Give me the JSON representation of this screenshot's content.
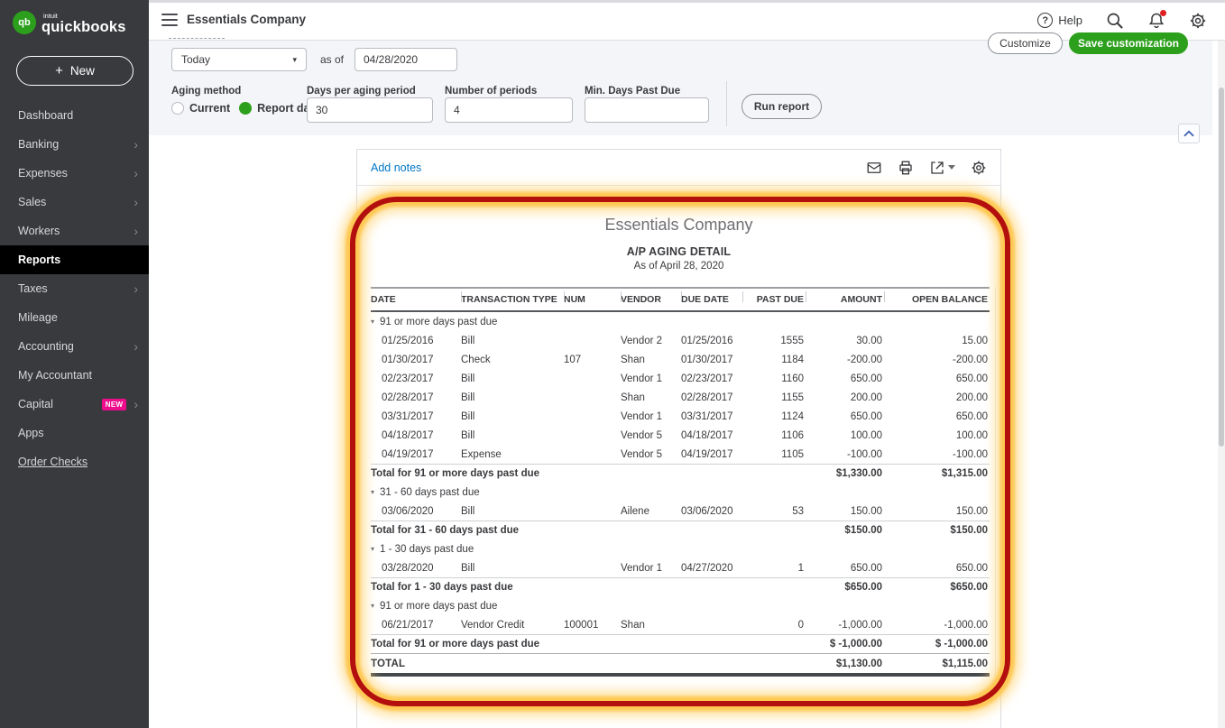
{
  "colors": {
    "green": "#2ca01c",
    "pink": "#ec0c8c",
    "blue": "#0077c5",
    "red": "#b30f0c"
  },
  "brand": {
    "badge": "qb",
    "intuit": "intuit",
    "name": "quickbooks"
  },
  "topbar": {
    "company": "Essentials Company",
    "help": "Help"
  },
  "actions": {
    "customize": "Customize",
    "save_customization": "Save customization",
    "run_report": "Run report"
  },
  "sidebar": {
    "new_plus": "+",
    "new_label": "New",
    "items": [
      {
        "label": "Dashboard",
        "chevron": false,
        "selected": false
      },
      {
        "label": "Banking",
        "chevron": true,
        "selected": false
      },
      {
        "label": "Expenses",
        "chevron": true,
        "selected": false
      },
      {
        "label": "Sales",
        "chevron": true,
        "selected": false
      },
      {
        "label": "Workers",
        "chevron": true,
        "selected": false
      },
      {
        "label": "Reports",
        "chevron": false,
        "selected": true
      },
      {
        "label": "Taxes",
        "chevron": true,
        "selected": false
      },
      {
        "label": "Mileage",
        "chevron": false,
        "selected": false
      },
      {
        "label": "Accounting",
        "chevron": true,
        "selected": false
      },
      {
        "label": "My Accountant",
        "chevron": false,
        "selected": false
      },
      {
        "label": "Capital",
        "chevron": true,
        "selected": false,
        "badge": "NEW"
      },
      {
        "label": "Apps",
        "chevron": false,
        "selected": false
      },
      {
        "label": "Order Checks",
        "chevron": false,
        "selected": false,
        "underline": true
      }
    ]
  },
  "filters": {
    "period_value": "Today",
    "as_of_label": "as of",
    "as_of_value": "04/28/2020",
    "aging_method_label": "Aging method",
    "aging_options": [
      {
        "label": "Current",
        "selected": false
      },
      {
        "label": "Report date",
        "selected": true
      }
    ],
    "days_per_period_label": "Days per aging period",
    "days_per_period_value": "30",
    "num_periods_label": "Number of periods",
    "num_periods_value": "4",
    "min_days_label": "Min. Days Past Due",
    "min_days_value": ""
  },
  "report_toolbar": {
    "add_notes": "Add notes"
  },
  "report": {
    "company": "Essentials Company",
    "title": "A/P AGING DETAIL",
    "subtitle": "As of April 28, 2020",
    "columns": [
      {
        "label": "DATE",
        "align": "left"
      },
      {
        "label": "TRANSACTION TYPE",
        "align": "left"
      },
      {
        "label": "NUM",
        "align": "left"
      },
      {
        "label": "VENDOR",
        "align": "left"
      },
      {
        "label": "DUE DATE",
        "align": "left"
      },
      {
        "label": "PAST DUE",
        "align": "right"
      },
      {
        "label": "AMOUNT",
        "align": "right"
      },
      {
        "label": "OPEN BALANCE",
        "align": "right"
      }
    ],
    "groups": [
      {
        "label": "91 or more days past due",
        "rows": [
          [
            "01/25/2016",
            "Bill",
            "",
            "Vendor 2",
            "01/25/2016",
            "1555",
            "30.00",
            "15.00"
          ],
          [
            "01/30/2017",
            "Check",
            "107",
            "Shan",
            "01/30/2017",
            "1184",
            "-200.00",
            "-200.00"
          ],
          [
            "02/23/2017",
            "Bill",
            "",
            "Vendor 1",
            "02/23/2017",
            "1160",
            "650.00",
            "650.00"
          ],
          [
            "02/28/2017",
            "Bill",
            "",
            "Shan",
            "02/28/2017",
            "1155",
            "200.00",
            "200.00"
          ],
          [
            "03/31/2017",
            "Bill",
            "",
            "Vendor 1",
            "03/31/2017",
            "1124",
            "650.00",
            "650.00"
          ],
          [
            "04/18/2017",
            "Bill",
            "",
            "Vendor 5",
            "04/18/2017",
            "1106",
            "100.00",
            "100.00"
          ],
          [
            "04/19/2017",
            "Expense",
            "",
            "Vendor 5",
            "04/19/2017",
            "1105",
            "-100.00",
            "-100.00"
          ]
        ],
        "total_label": "Total for 91 or more days past due",
        "total_amount": "$1,330.00",
        "total_open": "$1,315.00"
      },
      {
        "label": "31 - 60 days past due",
        "rows": [
          [
            "03/06/2020",
            "Bill",
            "",
            "Ailene",
            "03/06/2020",
            "53",
            "150.00",
            "150.00"
          ]
        ],
        "total_label": "Total for 31 - 60 days past due",
        "total_amount": "$150.00",
        "total_open": "$150.00"
      },
      {
        "label": "1 - 30 days past due",
        "rows": [
          [
            "03/28/2020",
            "Bill",
            "",
            "Vendor 1",
            "04/27/2020",
            "1",
            "650.00",
            "650.00"
          ]
        ],
        "total_label": "Total for 1 - 30 days past due",
        "total_amount": "$650.00",
        "total_open": "$650.00"
      },
      {
        "label": "91 or more days past due",
        "rows": [
          [
            "06/21/2017",
            "Vendor Credit",
            "100001",
            "Shan",
            "",
            "0",
            "-1,000.00",
            "-1,000.00"
          ]
        ],
        "total_label": "Total for 91 or more days past due",
        "total_amount": "$ -1,000.00",
        "total_open": "$ -1,000.00"
      }
    ],
    "grand_total": {
      "label": "TOTAL",
      "amount": "$1,130.00",
      "open": "$1,115.00"
    }
  }
}
